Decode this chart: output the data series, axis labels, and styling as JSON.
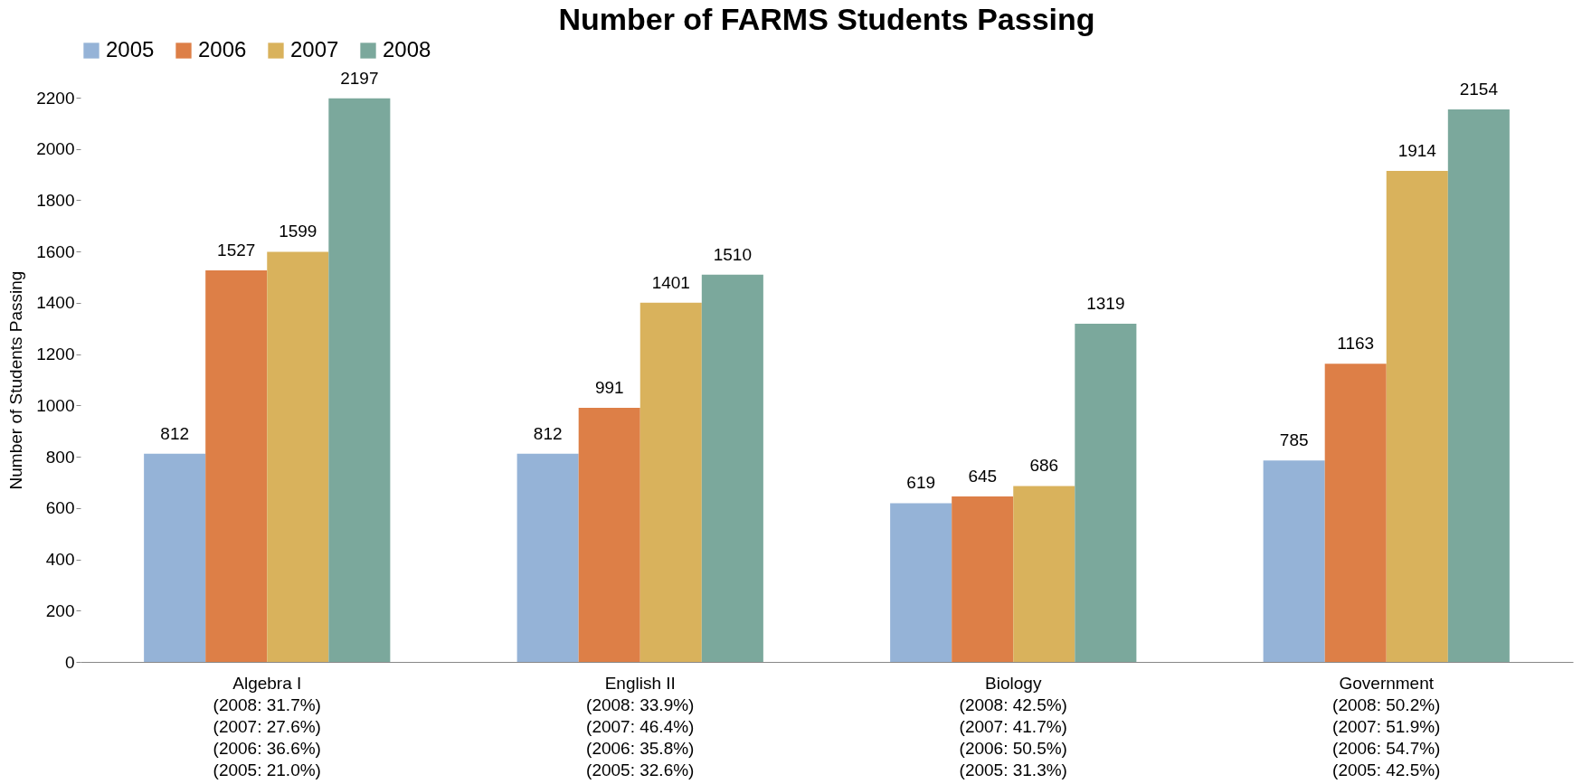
{
  "chart_data": {
    "type": "bar",
    "title": "Number of FARMS Students Passing",
    "ylabel": "Number of Students Passing",
    "categories": [
      "Algebra I\n(2008: 31.7%)\n(2007: 27.6%)\n(2006: 36.6%)\n(2005: 21.0%)",
      "English II\n(2008: 33.9%)\n(2007: 46.4%)\n(2006: 35.8%)\n(2005: 32.6%)",
      "Biology\n(2008: 42.5%)\n(2007: 41.7%)\n(2006: 50.5%)\n(2005: 31.3%)",
      "Government\n(2008: 50.2%)\n(2007: 51.9%)\n(2006: 54.7%)\n(2005: 42.5%)"
    ],
    "series": [
      {
        "name": "2005",
        "color": "#95b3d7",
        "values": [
          812,
          812,
          619,
          785
        ]
      },
      {
        "name": "2006",
        "color": "#dd7f47",
        "values": [
          1527,
          991,
          645,
          1163
        ]
      },
      {
        "name": "2007",
        "color": "#d9b25c",
        "values": [
          1599,
          1401,
          686,
          1914
        ]
      },
      {
        "name": "2008",
        "color": "#7ba89c",
        "values": [
          2197,
          1510,
          1319,
          2154
        ]
      }
    ],
    "ylim": [
      0,
      2200
    ],
    "yticks": [
      0,
      200,
      400,
      600,
      800,
      1000,
      1200,
      1400,
      1600,
      1800,
      2000,
      2200
    ],
    "grid": false,
    "legend": "top",
    "data_labels": true
  }
}
